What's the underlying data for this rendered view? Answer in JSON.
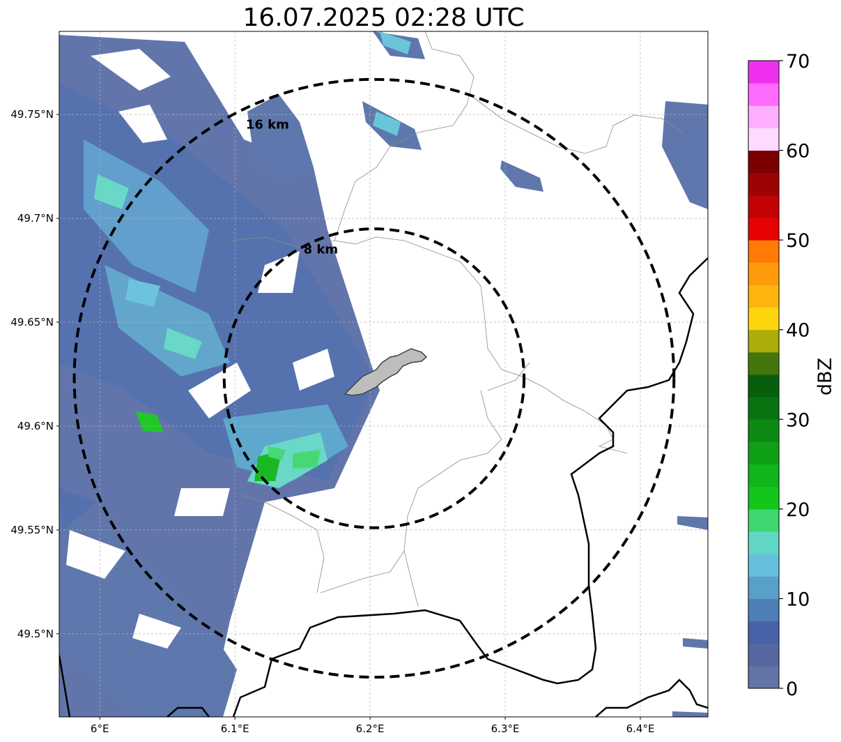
{
  "title": "16.07.2025 02:28 UTC",
  "map": {
    "x_ticks": [
      {
        "lon": 6.0,
        "label": "6°E"
      },
      {
        "lon": 6.1,
        "label": "6.1°E"
      },
      {
        "lon": 6.2,
        "label": "6.2°E"
      },
      {
        "lon": 6.3,
        "label": "6.3°E"
      },
      {
        "lon": 6.4,
        "label": "6.4°E"
      }
    ],
    "y_ticks": [
      {
        "lat": 49.75,
        "label": "49.75°N"
      },
      {
        "lat": 49.7,
        "label": "49.7°N"
      },
      {
        "lat": 49.65,
        "label": "49.65°N"
      },
      {
        "lat": 49.6,
        "label": "49.6°N"
      },
      {
        "lat": 49.55,
        "label": "49.55°N"
      },
      {
        "lat": 49.5,
        "label": "49.5°N"
      }
    ],
    "lon_range": [
      5.97,
      6.45
    ],
    "lat_range": [
      49.46,
      49.79
    ],
    "gridlines": true,
    "range_rings": [
      {
        "radius_km": 8,
        "label": "8 km"
      },
      {
        "radius_km": 16,
        "label": "16 km"
      }
    ],
    "radar_center": {
      "lon": 6.203,
      "lat": 49.623
    }
  },
  "colorbar": {
    "label": "dBZ",
    "min": 0,
    "max": 70,
    "step": 2.5,
    "tick_values": [
      0,
      10,
      20,
      30,
      40,
      50,
      60,
      70
    ],
    "tick_labels": [
      "0",
      "10",
      "20",
      "30",
      "40",
      "50",
      "60",
      "70"
    ],
    "colors": [
      "#6373a6",
      "#56689f",
      "#4762a8",
      "#4d7fb6",
      "#589fca",
      "#66c0dd",
      "#62d6c4",
      "#3ed66f",
      "#12c61a",
      "#10b41b",
      "#0fa018",
      "#0d8a14",
      "#097312",
      "#075f0d",
      "#43770d",
      "#acac0b",
      "#fed50d",
      "#feb40d",
      "#ff9a0b",
      "#ff7b06",
      "#e60202",
      "#c20303",
      "#9e0303",
      "#7b0101",
      "#ffdaff",
      "#ffaeff",
      "#ff6bff",
      "#ef31ef"
    ]
  }
}
